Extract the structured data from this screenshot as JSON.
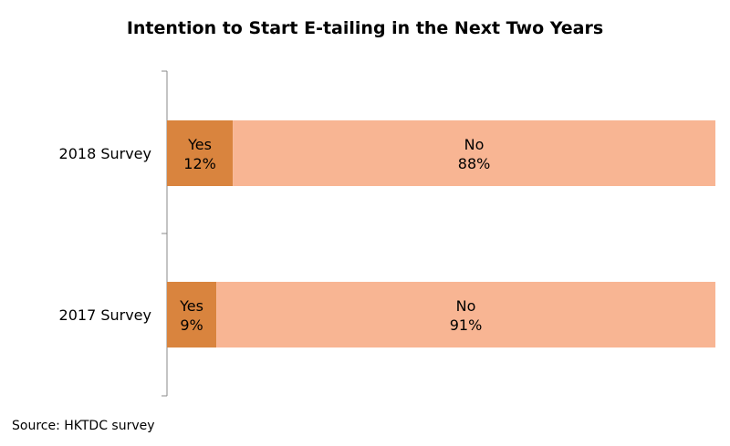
{
  "chart_data": {
    "type": "bar",
    "orientation": "horizontal",
    "stacked": true,
    "title": "Intention to Start E-tailing in the Next Two Years",
    "categories": [
      "2018 Survey",
      "2017 Survey"
    ],
    "series": [
      {
        "name": "Yes",
        "values": [
          12,
          9
        ],
        "color": "#d9843e"
      },
      {
        "name": "No",
        "values": [
          88,
          91
        ],
        "color": "#f8b593"
      }
    ],
    "data_labels": [
      [
        "Yes",
        "12%",
        "No",
        "88%"
      ],
      [
        "Yes",
        "9%",
        "No",
        "91%"
      ]
    ],
    "xlim": [
      0,
      100
    ],
    "grid": false,
    "legend": "none"
  },
  "source": "Source: HKTDC survey"
}
